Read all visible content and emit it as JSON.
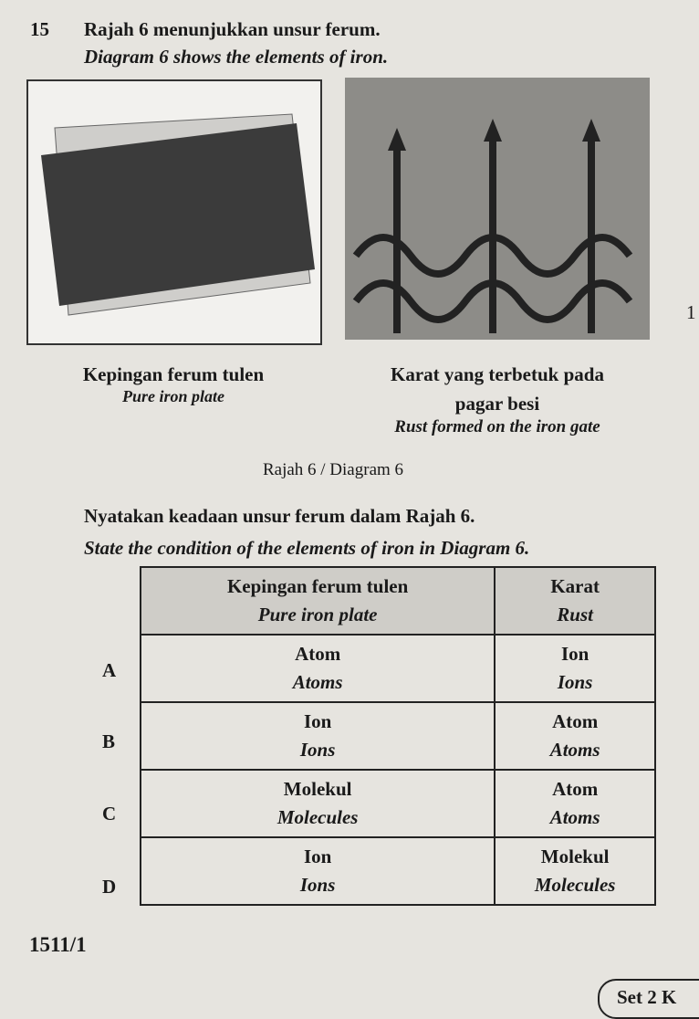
{
  "question": {
    "number": "15",
    "text_ms": "Rajah 6 menunjukkan unsur ferum.",
    "text_en": "Diagram 6 shows the elements of iron."
  },
  "figure": {
    "left_caption_ms": "Kepingan ferum tulen",
    "left_caption_en": "Pure iron plate",
    "right_caption_ms_line1": "Karat yang terbetuk pada",
    "right_caption_ms_line2": "pagar besi",
    "right_caption_en": "Rust formed on the iron gate",
    "label": "Rajah 6 / Diagram 6"
  },
  "prompt_ms": "Nyatakan keadaan unsur ferum dalam Rajah 6.",
  "prompt_en": "State the condition of the elements of iron in Diagram 6.",
  "table": {
    "headers": [
      {
        "ms": "Kepingan ferum tulen",
        "en": "Pure iron plate"
      },
      {
        "ms": "Karat",
        "en": "Rust"
      }
    ],
    "rows": [
      {
        "option": "A",
        "cells": [
          {
            "ms": "Atom",
            "en": "Atoms"
          },
          {
            "ms": "Ion",
            "en": "Ions"
          }
        ]
      },
      {
        "option": "B",
        "cells": [
          {
            "ms": "Ion",
            "en": "Ions"
          },
          {
            "ms": "Atom",
            "en": "Atoms"
          }
        ]
      },
      {
        "option": "C",
        "cells": [
          {
            "ms": "Molekul",
            "en": "Molecules"
          },
          {
            "ms": "Atom",
            "en": "Atoms"
          }
        ]
      },
      {
        "option": "D",
        "cells": [
          {
            "ms": "Ion",
            "en": "Ions"
          },
          {
            "ms": "Molekul",
            "en": "Molecules"
          }
        ]
      }
    ]
  },
  "footer": {
    "code": "1511/1",
    "set": "Set 2 K",
    "margin_mark": "1"
  }
}
